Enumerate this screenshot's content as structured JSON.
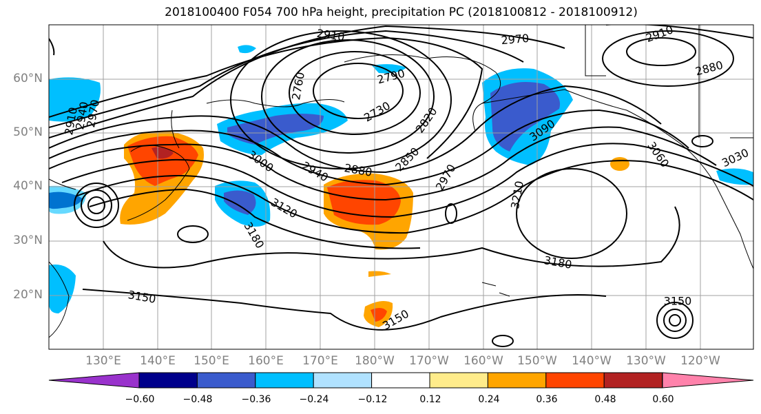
{
  "title": "2018100400 F054 700 hPa height, precipitation PC (2018100812 - 2018100912)",
  "lat_labels": [
    "60°N",
    "50°N",
    "40°N",
    "30°N",
    "20°N"
  ],
  "lon_labels": [
    "130°E",
    "140°E",
    "150°E",
    "160°E",
    "170°E",
    "180°W",
    "170°W",
    "160°W",
    "150°W",
    "140°W",
    "130°W",
    "120°W"
  ],
  "colorbar": {
    "ticks": [
      "−0.60",
      "−0.48",
      "−0.36",
      "−0.24",
      "−0.12",
      "0.12",
      "0.24",
      "0.36",
      "0.48",
      "0.60"
    ],
    "colors": [
      "#9932cc",
      "#00008b",
      "#3a5bcd",
      "#00bfff",
      "#b0e2ff",
      "#ffffff",
      "#ffec8b",
      "#ffa500",
      "#ff4500",
      "#b22222",
      "#ff82ab"
    ]
  },
  "contour_labels": [
    "2910",
    "2970",
    "2790",
    "2730",
    "2820",
    "2880",
    "2850",
    "2940",
    "3000",
    "2970",
    "3090",
    "3060",
    "3030",
    "3120",
    "3180",
    "3210",
    "3180",
    "3150",
    "3150",
    "3150",
    "2910",
    "2880",
    "2910",
    "2940",
    "2970",
    "2760"
  ]
}
